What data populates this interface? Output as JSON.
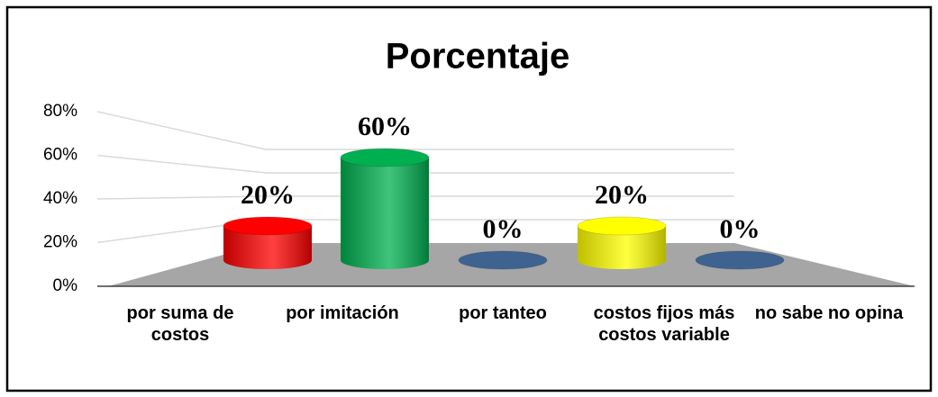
{
  "chart_data": {
    "type": "bar3d",
    "title": "Porcentaje",
    "categories": [
      "por suma de costos",
      "por imitación",
      "por tanteo",
      "costos fijos más costos variable",
      "no sabe no opina"
    ],
    "values": [
      20,
      60,
      0,
      20,
      0
    ],
    "value_labels": [
      "20%",
      "60%",
      "0%",
      "20%",
      "0%"
    ],
    "colors": [
      "#ff0000",
      "#00b050",
      "#3f6390",
      "#ffff00",
      "#3f6390"
    ],
    "ylim": [
      0,
      80
    ],
    "yticks": [
      {
        "value": 0,
        "label": "0%"
      },
      {
        "value": 20,
        "label": "20%"
      },
      {
        "value": 40,
        "label": "40%"
      },
      {
        "value": 60,
        "label": "60%"
      },
      {
        "value": 80,
        "label": "80%"
      }
    ],
    "grid": true
  }
}
